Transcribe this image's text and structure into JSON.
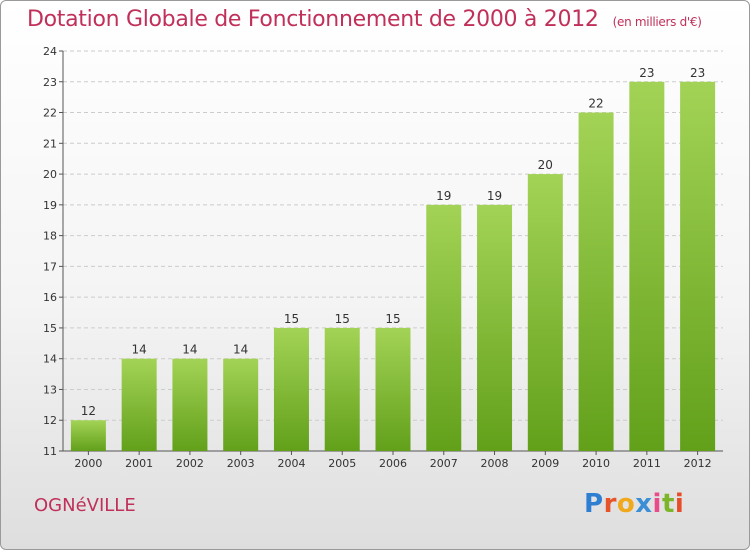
{
  "chart_title": "Dotation Globale de Fonctionnement de 2000 à 2012",
  "chart_unit": "(en milliers d'€)",
  "location": "OGNéVILLE",
  "logo": {
    "letters": [
      "P",
      "r",
      "o",
      "x",
      "i",
      "t",
      "i"
    ],
    "colors": [
      "#2e7fd1",
      "#e8542a",
      "#f0a81c",
      "#3a8fd6",
      "#e84d8a",
      "#7cb52a",
      "#e84d2a"
    ]
  },
  "colors": {
    "bar_light": "#a3d356",
    "bar_dark": "#62a01a",
    "grid": "#cccccc",
    "title": "#c0305a"
  },
  "chart_data": {
    "type": "bar",
    "categories": [
      "2000",
      "2001",
      "2002",
      "2003",
      "2004",
      "2005",
      "2006",
      "2007",
      "2008",
      "2009",
      "2010",
      "2011",
      "2012"
    ],
    "values": [
      12,
      14,
      14,
      14,
      15,
      15,
      15,
      19,
      19,
      20,
      22,
      23,
      23
    ],
    "ylim": [
      11,
      24
    ],
    "yticks": [
      11,
      12,
      13,
      14,
      15,
      16,
      17,
      18,
      19,
      20,
      21,
      22,
      23,
      24
    ],
    "grid": true,
    "legend": "none"
  }
}
